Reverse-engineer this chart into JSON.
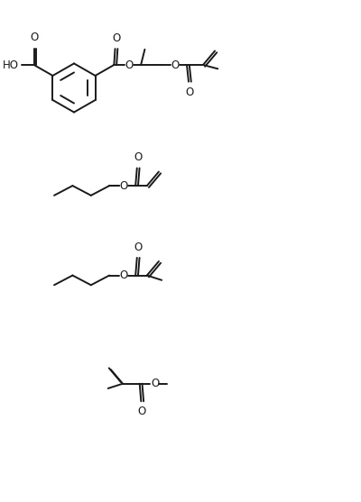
{
  "bg_color": "#ffffff",
  "line_color": "#1a1a1a",
  "lw": 1.4,
  "fs": 8.5,
  "fig_w": 4.0,
  "fig_h": 5.57,
  "dpi": 100,
  "xlim": [
    0,
    10
  ],
  "ylim": [
    0,
    14
  ]
}
